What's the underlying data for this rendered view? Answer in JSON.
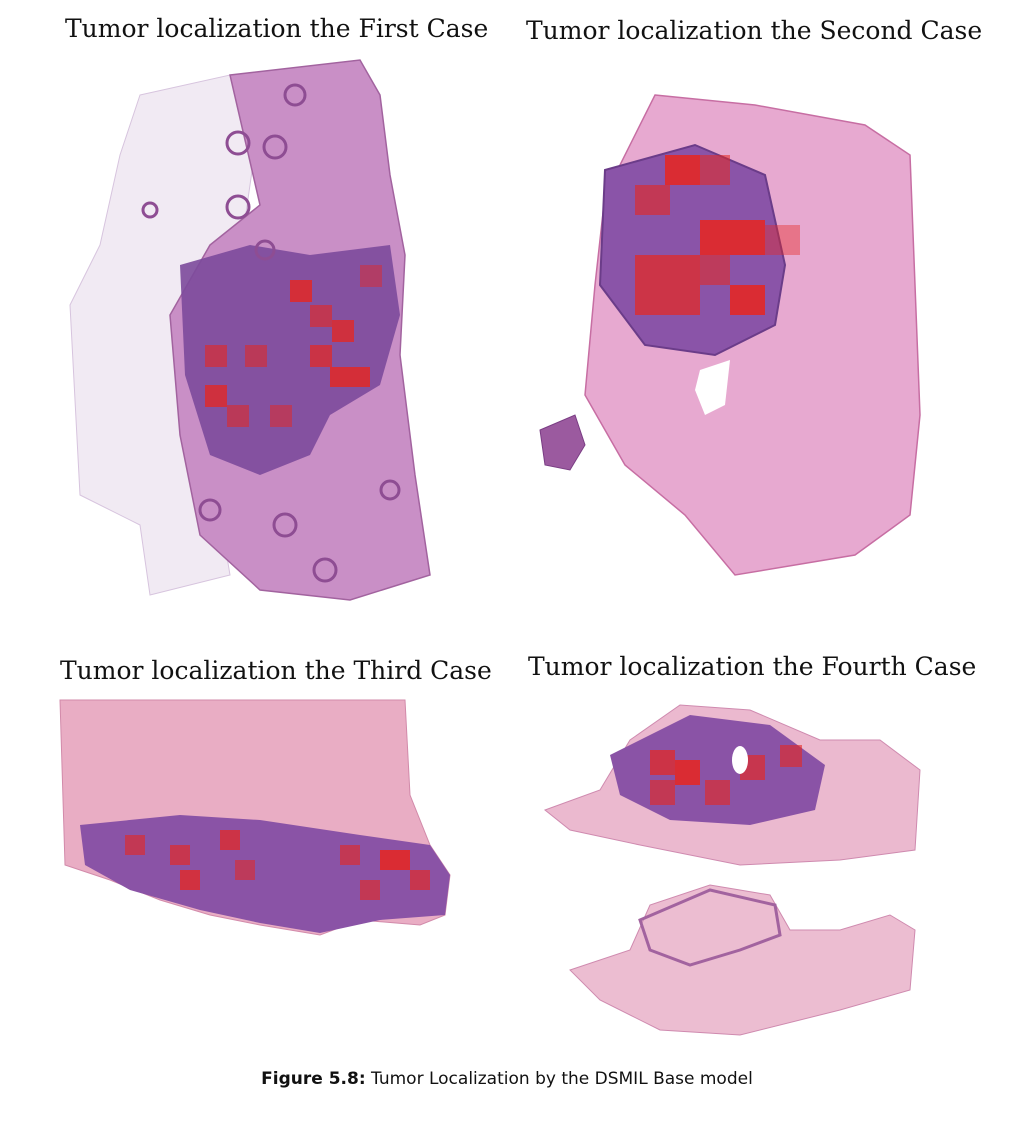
{
  "figure": {
    "panels": [
      {
        "title": "Tumor localization the First Case"
      },
      {
        "title": "Tumor localization the Second Case"
      },
      {
        "title": "Tumor localization the Third Case"
      },
      {
        "title": "Tumor localization the Fourth Case"
      }
    ],
    "caption": {
      "label": "Figure 5.8:",
      "text": "Tumor Localization by the DSMIL Base model"
    },
    "colors": {
      "stroma_pink": "#e7b3d3",
      "tissue_purple": "#8e58a6",
      "tumor_nest": "#6e3f8f",
      "heatmap_red": "#e8261e",
      "fat_white": "#f3eef5"
    }
  }
}
